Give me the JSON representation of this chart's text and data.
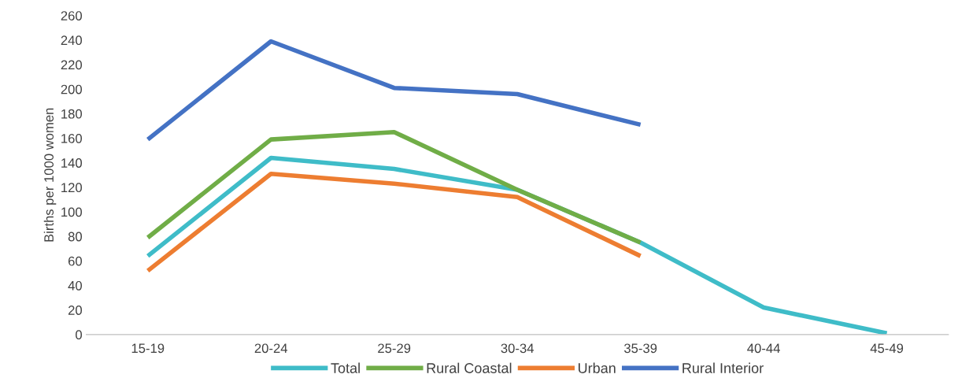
{
  "chart_data": {
    "type": "line",
    "ylabel": "Births per 1000 women",
    "categories": [
      "15-19",
      "20-24",
      "25-29",
      "30-34",
      "35-39",
      "40-44",
      "45-49"
    ],
    "series": [
      {
        "name": "Total",
        "color": "#3fbcc8",
        "values": [
          64,
          144,
          135,
          118,
          75,
          22,
          1
        ]
      },
      {
        "name": "Rural Coastal",
        "color": "#70ad47",
        "values": [
          79,
          159,
          165,
          118,
          75,
          null,
          null
        ]
      },
      {
        "name": "Urban",
        "color": "#ed7d31",
        "values": [
          52,
          131,
          123,
          112,
          64,
          null,
          null
        ]
      },
      {
        "name": "Rural Interior",
        "color": "#4472c4",
        "values": [
          159,
          239,
          201,
          196,
          171,
          null,
          null
        ]
      }
    ],
    "ylim": [
      0,
      260
    ],
    "yticks": [
      0,
      20,
      40,
      60,
      80,
      100,
      120,
      140,
      160,
      180,
      200,
      220,
      240,
      260
    ],
    "grid": false,
    "legend": "bottom",
    "marker": "none",
    "line_style": "solid"
  }
}
